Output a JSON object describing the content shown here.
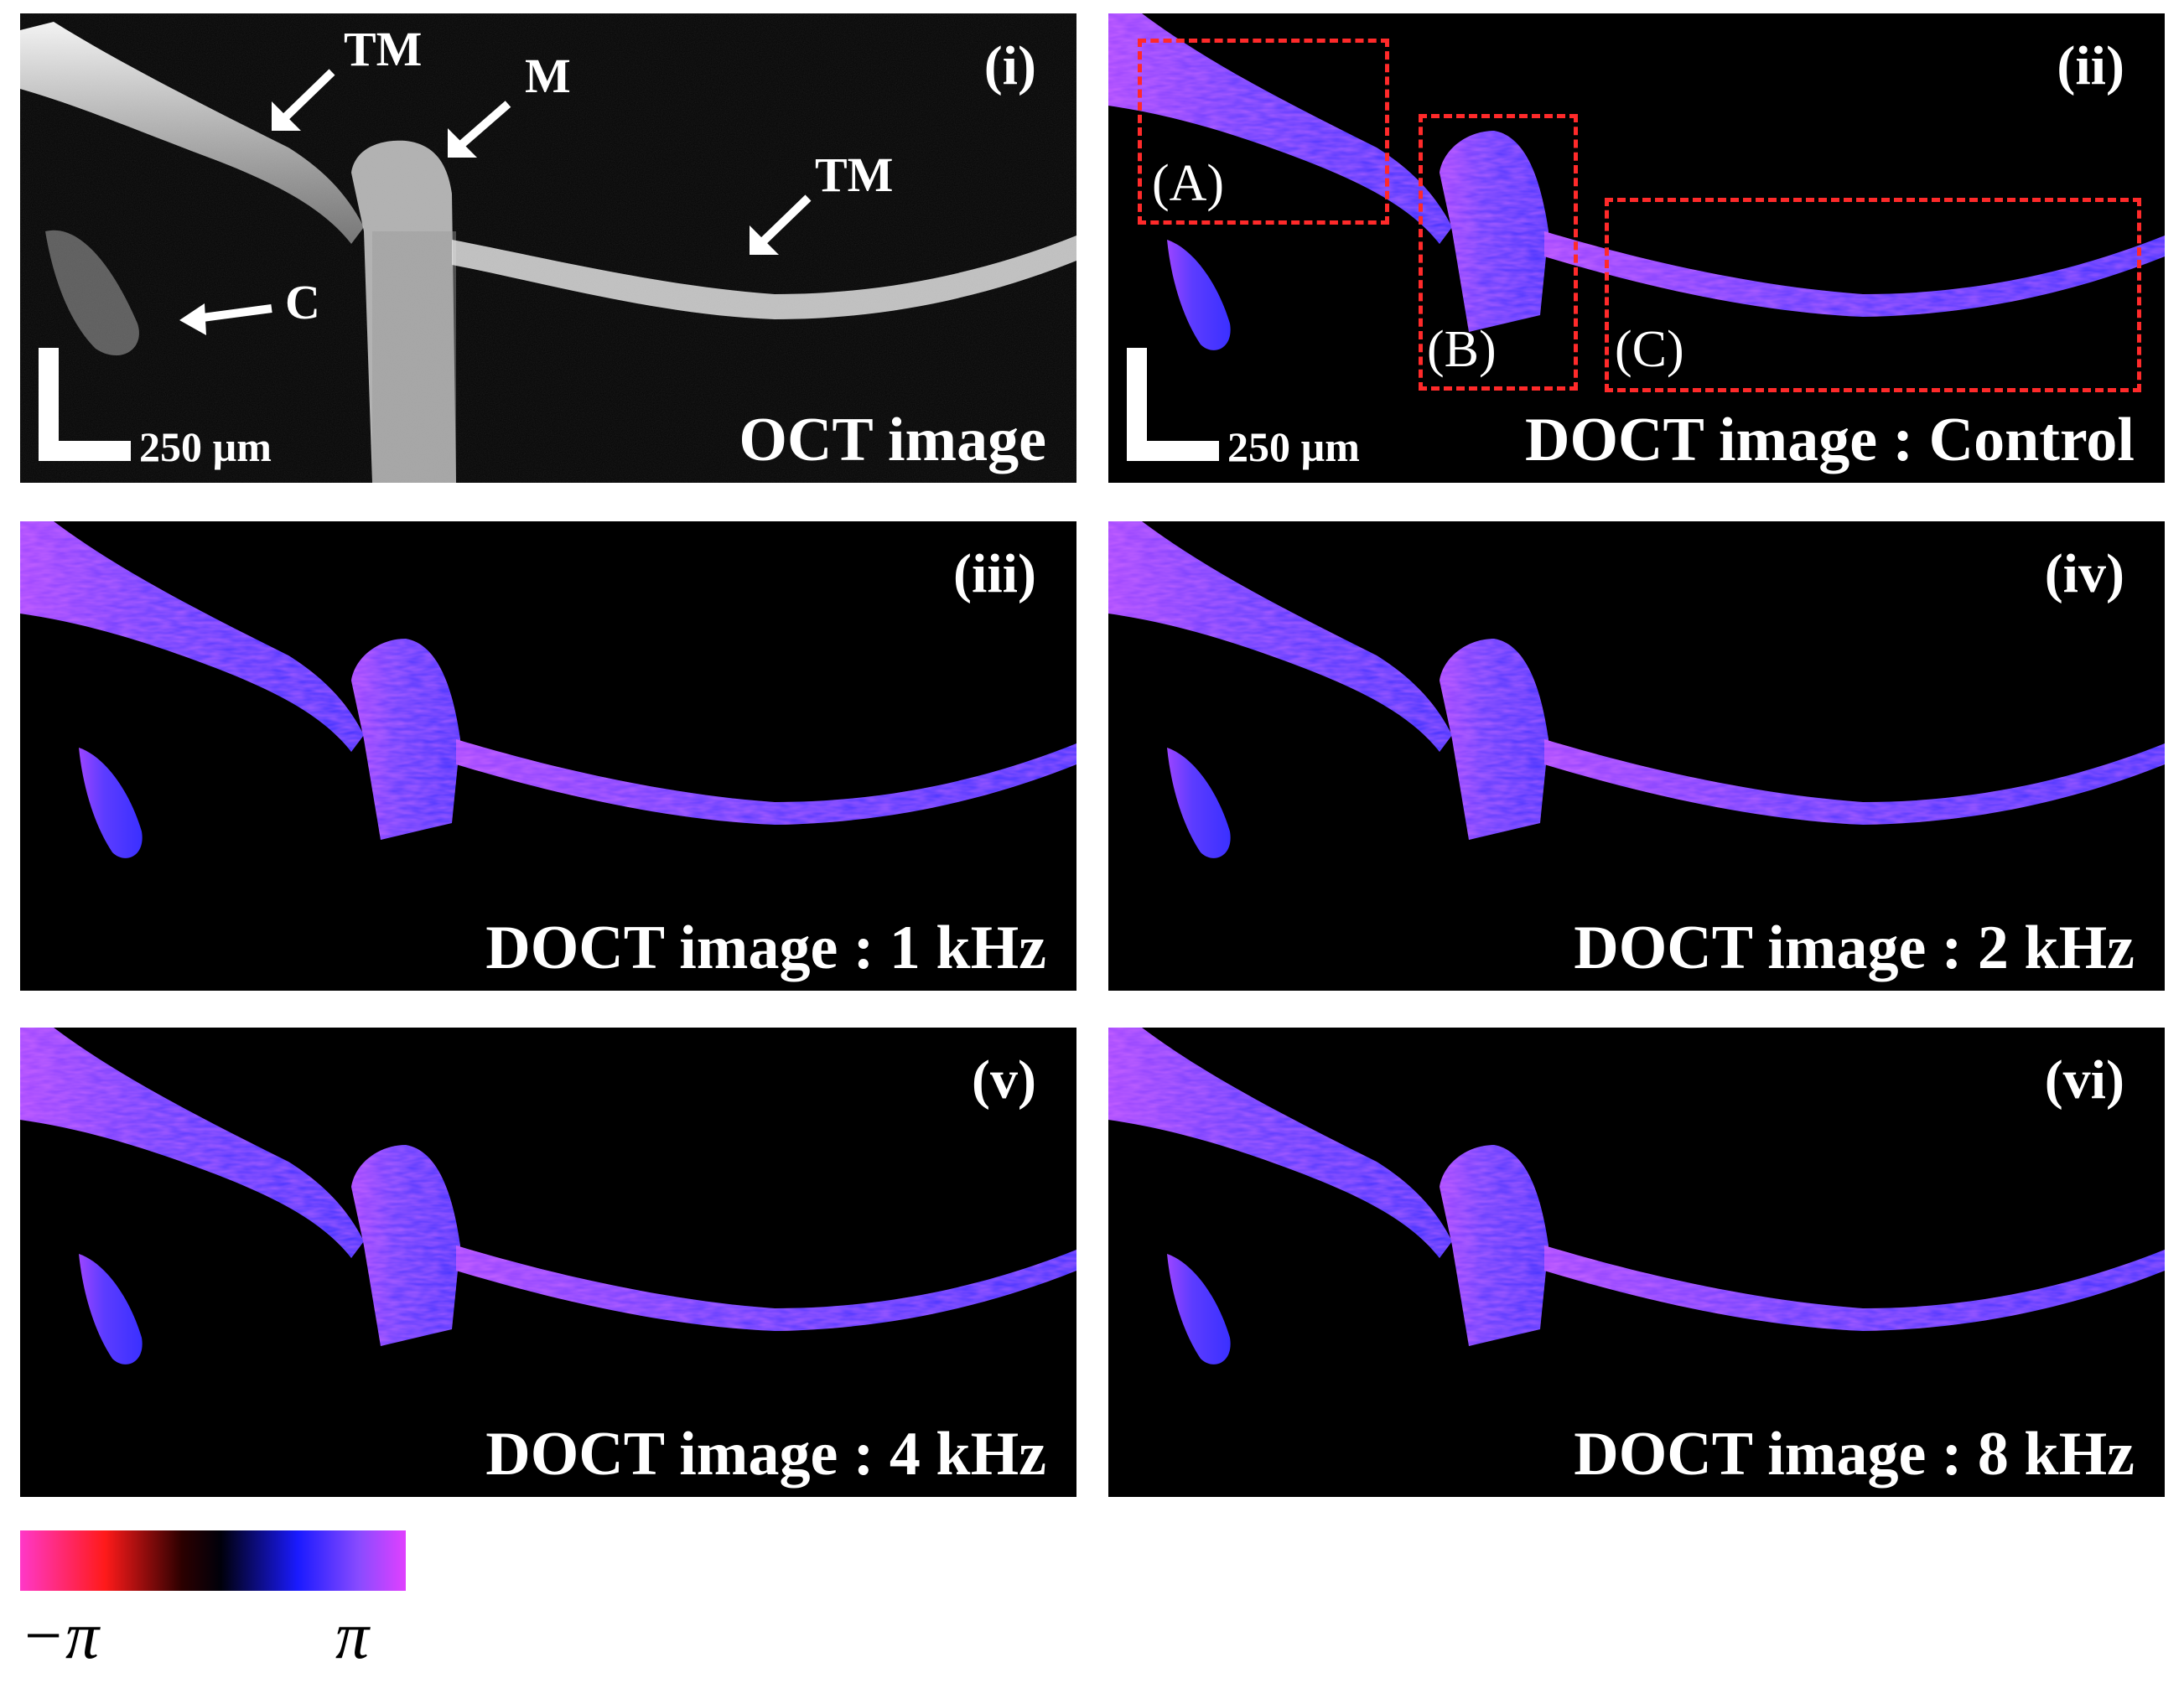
{
  "panels": [
    {
      "tag": "(i)",
      "caption": "OCT image",
      "scale_label": "250 µm",
      "annotations": [
        "TM",
        "M",
        "TM",
        "C"
      ]
    },
    {
      "tag": "(ii)",
      "caption": "DOCT image : Control",
      "scale_label": "250 µm",
      "regions": [
        "(A)",
        "(B)",
        "(C)"
      ]
    },
    {
      "tag": "(iii)",
      "caption": "DOCT image : 1 kHz"
    },
    {
      "tag": "(iv)",
      "caption": "DOCT image : 2 kHz"
    },
    {
      "tag": "(v)",
      "caption": "DOCT image : 4 kHz"
    },
    {
      "tag": "(vi)",
      "caption": "DOCT image : 8 kHz"
    }
  ],
  "colorbar": {
    "min_label": "−π",
    "max_label": "π",
    "colors": [
      "#ff38c8",
      "#ff1a1a",
      "#000000",
      "#1a1aff",
      "#e040ff"
    ]
  },
  "colors": {
    "roi_box": "#ff2a2a",
    "oct_tissue": "#e8e8e8",
    "doct_tissue": "#6a3cff"
  }
}
